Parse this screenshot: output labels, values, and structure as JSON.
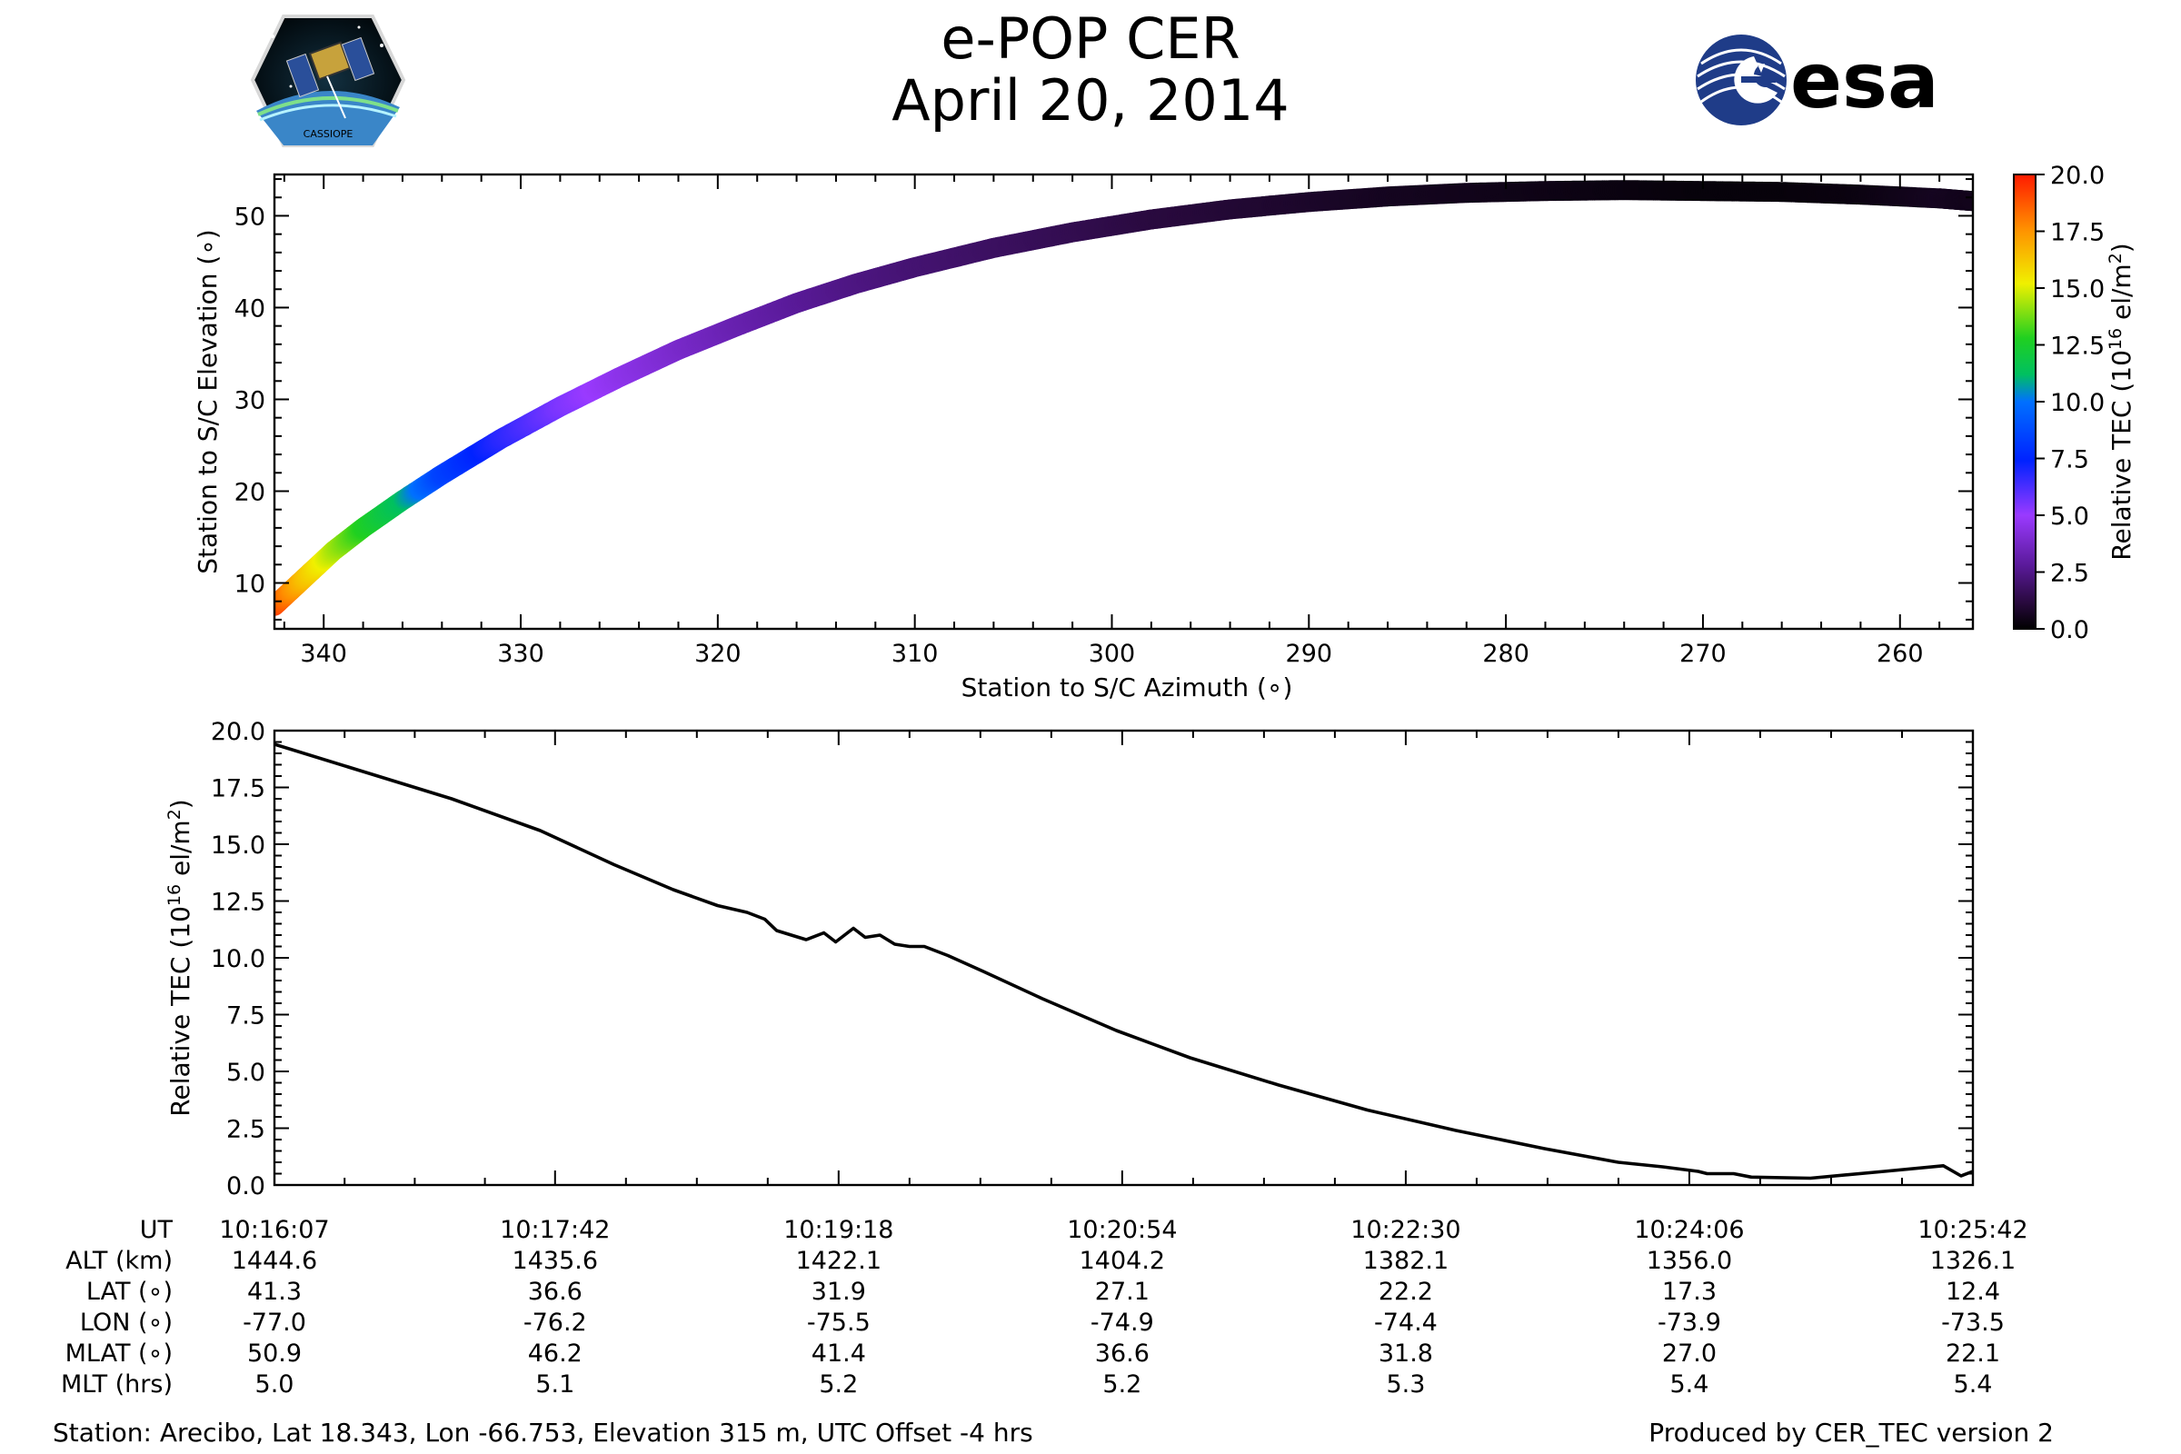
{
  "title": {
    "line1": "e-POP CER",
    "line2": "April 20, 2014"
  },
  "logos": {
    "left": {
      "name": "CASSIOPE mission badge",
      "text": "CASSIOPE"
    },
    "right": {
      "name": "ESA logo",
      "text": "esa",
      "color": "#1f3c88"
    }
  },
  "chart_data": [
    {
      "type": "scatter",
      "title": "",
      "xlabel": "Station to S/C Azimuth (∘)",
      "ylabel": "Station to S/C Elevation (∘)",
      "xlim": [
        342.5,
        256.3
      ],
      "ylim": [
        5,
        54.5
      ],
      "xticks": [
        340,
        330,
        320,
        310,
        300,
        290,
        280,
        270,
        260
      ],
      "yticks": [
        10,
        20,
        30,
        40,
        50
      ],
      "colorbar": {
        "label": "Relative TEC (10",
        "label_exp": "16",
        "label_end": " el/m",
        "label_sq": "2",
        "label_close": ")",
        "range": [
          0,
          20
        ],
        "ticks": [
          "0.0",
          "2.5",
          "5.0",
          "7.5",
          "10.0",
          "12.5",
          "15.0",
          "17.5",
          "20.0"
        ],
        "colormap": "gnuplot2_r-like (black-purple-blue-green-yellow-red)"
      },
      "series": [
        {
          "name": "Elevation vs azimuth, colored by TEC",
          "azimuth": [
            342.5,
            341,
            339.5,
            338,
            336,
            334,
            331,
            328,
            325,
            322,
            319,
            316,
            313,
            310,
            306,
            302,
            298,
            294,
            290,
            286,
            282,
            278,
            274,
            270,
            266,
            262,
            258,
            256.3
          ],
          "elevation": [
            7.5,
            10.5,
            13.5,
            16,
            19,
            21.8,
            25.7,
            29.2,
            32.4,
            35.4,
            38,
            40.5,
            42.6,
            44.4,
            46.5,
            48.2,
            49.6,
            50.7,
            51.5,
            52.1,
            52.5,
            52.7,
            52.8,
            52.7,
            52.6,
            52.3,
            51.9,
            51.6
          ],
          "tec": [
            19.2,
            16.5,
            14.5,
            12.8,
            11.2,
            8.5,
            6.8,
            5.5,
            4.6,
            3.9,
            3.3,
            2.8,
            2.4,
            2.1,
            1.8,
            1.5,
            1.2,
            1.0,
            0.8,
            0.6,
            0.5,
            0.4,
            0.3,
            0.2,
            0.2,
            0.3,
            0.6,
            0.5
          ]
        }
      ]
    },
    {
      "type": "line",
      "title": "",
      "xlabel": "",
      "ylabel": "Relative TEC (10",
      "ylabel_exp": "16",
      "ylabel_end": " el/m",
      "ylabel_sq": "2",
      "ylabel_close": ")",
      "xlim": [
        0,
        575
      ],
      "ylim": [
        0,
        20
      ],
      "yticks": [
        "0.0",
        "2.5",
        "5.0",
        "7.5",
        "10.0",
        "12.5",
        "15.0",
        "17.5",
        "20.0"
      ],
      "yticks_values": [
        0,
        2.5,
        5,
        7.5,
        10,
        12.5,
        15,
        17.5,
        20
      ],
      "xticks_seconds": [
        0,
        95,
        191,
        287,
        383,
        479,
        575
      ],
      "series": [
        {
          "name": "Relative TEC",
          "t": [
            0,
            30,
            60,
            90,
            115,
            135,
            150,
            160,
            166,
            170,
            175,
            180,
            186,
            190,
            196,
            200,
            205,
            210,
            215,
            220,
            228,
            240,
            260,
            285,
            310,
            340,
            370,
            400,
            430,
            455,
            470,
            482,
            485,
            488,
            490,
            494,
            500,
            520,
            545,
            565,
            571,
            575
          ],
          "tec": [
            19.4,
            18.2,
            17.0,
            15.6,
            14.1,
            13.0,
            12.3,
            12.0,
            11.7,
            11.2,
            11.0,
            10.8,
            11.1,
            10.7,
            11.3,
            10.9,
            11.0,
            10.6,
            10.5,
            10.5,
            10.1,
            9.4,
            8.2,
            6.8,
            5.6,
            4.4,
            3.3,
            2.4,
            1.6,
            1.0,
            0.8,
            0.6,
            0.5,
            0.5,
            0.5,
            0.5,
            0.35,
            0.3,
            0.6,
            0.85,
            0.4,
            0.6
          ]
        }
      ]
    }
  ],
  "ephemeris": {
    "row_labels": [
      "UT",
      "ALT (km)",
      "LAT (∘)",
      "LON (∘)",
      "MLAT (∘)",
      "MLT (hrs)"
    ],
    "columns": [
      [
        "10:16:07",
        "1444.6",
        "41.3",
        "-77.0",
        "50.9",
        "5.0"
      ],
      [
        "10:17:42",
        "1435.6",
        "36.6",
        "-76.2",
        "46.2",
        "5.1"
      ],
      [
        "10:19:18",
        "1422.1",
        "31.9",
        "-75.5",
        "41.4",
        "5.2"
      ],
      [
        "10:20:54",
        "1404.2",
        "27.1",
        "-74.9",
        "36.6",
        "5.2"
      ],
      [
        "10:22:30",
        "1382.1",
        "22.2",
        "-74.4",
        "31.8",
        "5.3"
      ],
      [
        "10:24:06",
        "1356.0",
        "17.3",
        "-73.9",
        "27.0",
        "5.4"
      ],
      [
        "10:25:42",
        "1326.1",
        "12.4",
        "-73.5",
        "22.1",
        "5.4"
      ]
    ]
  },
  "footer": {
    "station": "Station: Arecibo, Lat 18.343, Lon -66.753, Elevation 315 m, UTC Offset -4 hrs",
    "produced": "Produced by CER_TEC version 2"
  }
}
